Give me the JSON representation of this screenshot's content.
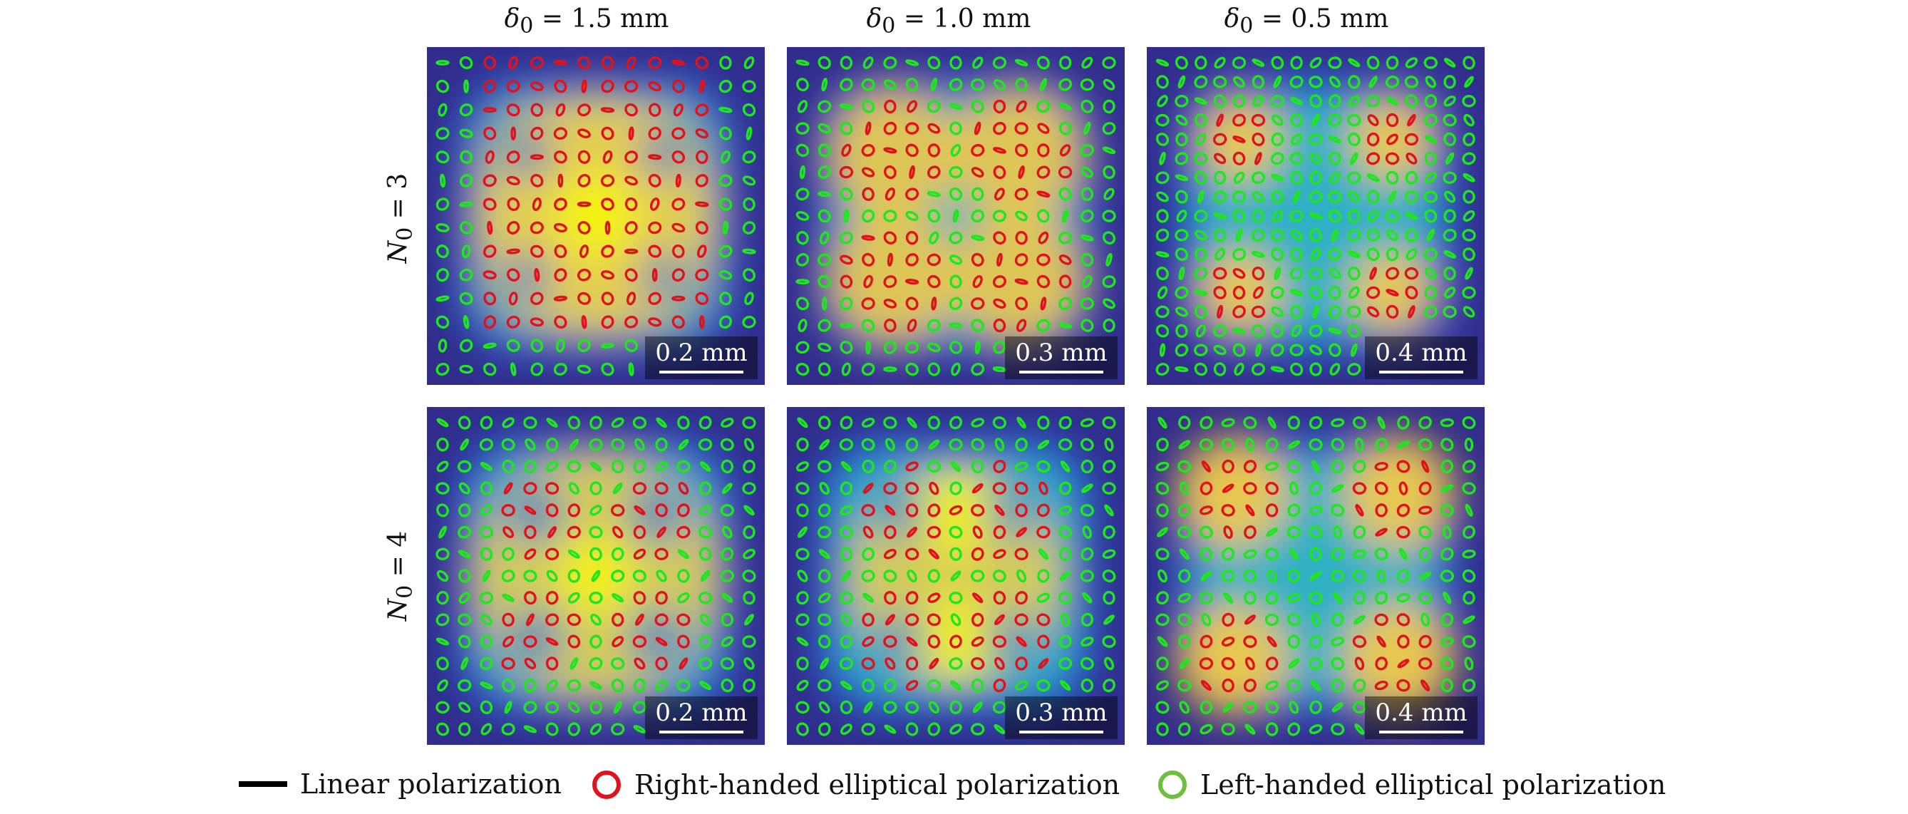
{
  "columns": [
    {
      "label_var": "δ",
      "label_sub": "0",
      "label_rest": " = 1.5 mm"
    },
    {
      "label_var": "δ",
      "label_sub": "0",
      "label_rest": " = 1.0 mm"
    },
    {
      "label_var": "δ",
      "label_sub": "0",
      "label_rest": " = 0.5 mm"
    }
  ],
  "rows": [
    {
      "label_var": "N",
      "label_sub": "0",
      "label_rest": " = 3"
    },
    {
      "label_var": "N",
      "label_sub": "0",
      "label_rest": " = 4"
    }
  ],
  "panels": [
    {
      "scale": "0.2 mm"
    },
    {
      "scale": "0.3 mm"
    },
    {
      "scale": "0.4 mm"
    },
    {
      "scale": "0.2 mm"
    },
    {
      "scale": "0.3 mm"
    },
    {
      "scale": "0.4 mm"
    }
  ],
  "legend": {
    "linear": "Linear polarization",
    "right": "Right-handed elliptical polarization",
    "left": "Left-handed elliptical polarization"
  },
  "colors": {
    "right": "#e0121c",
    "left": "#1fe61f",
    "left_legend": "#6cbf3f",
    "linear": "#000000"
  }
}
